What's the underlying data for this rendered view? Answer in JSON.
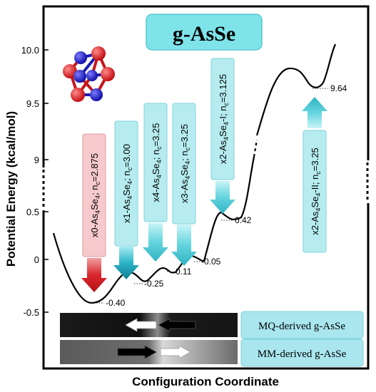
{
  "chart_data": {
    "type": "line",
    "title": "g-AsSe",
    "xlabel": "Configuration Coordinate",
    "ylabel": "Potential Energy (kcal/mol)",
    "y_tick_labels": [
      "-0.5",
      "0",
      "0.5",
      "9",
      "9.5",
      "10.0"
    ],
    "y_axis_break": "between 0.5 and 9",
    "series": [
      {
        "values": [
          0.3,
          -0.4,
          -0.25,
          -0.11,
          -0.05,
          0.42,
          9.12,
          9.84,
          9.64,
          10.04
        ]
      }
    ],
    "minima": [
      {
        "label": "-0.40",
        "value": -0.4
      },
      {
        "label": "-0.25",
        "value": -0.25
      },
      {
        "label": "-0.11",
        "value": -0.11
      },
      {
        "label": "-0.05",
        "value": -0.05
      },
      {
        "label": "0.42",
        "value": 0.42
      },
      {
        "label": "9.64",
        "value": 9.64
      }
    ],
    "configurations": [
      {
        "prefix": "x0-As",
        "as_sub": "4",
        "mid": "Se",
        "se_sub": "4",
        "suffix": "; n",
        "nsub": "c",
        "value": "=2.875",
        "color": "red"
      },
      {
        "prefix": "x1-As",
        "as_sub": "4",
        "mid": "Se",
        "se_sub": "4",
        "suffix": "; n",
        "nsub": "c",
        "value": "=3.00",
        "color": "teal"
      },
      {
        "prefix": "x4-As",
        "as_sub": "4",
        "mid": "Se",
        "se_sub": "4",
        "suffix": "; n",
        "nsub": "c",
        "value": "=3.25",
        "color": "cyan"
      },
      {
        "prefix": "x3-As",
        "as_sub": "4",
        "mid": "Se",
        "se_sub": "4",
        "suffix": "; n",
        "nsub": "c",
        "value": "=3.25",
        "color": "cyan"
      },
      {
        "prefix": "x2-As",
        "as_sub": "4",
        "mid": "Se",
        "se_sub": "4",
        "suffix": "-I; n",
        "nsub": "c",
        "value": "=3.125",
        "color": "cyan"
      },
      {
        "prefix": "x2-As",
        "as_sub": "4",
        "mid": "Se",
        "se_sub": "4",
        "suffix": "-II; n",
        "nsub": "c",
        "value": "=3.25",
        "color": "cyan"
      }
    ],
    "legend": {
      "placement": "bottom",
      "entries": [
        {
          "label": "MQ-derived g-AsSe"
        },
        {
          "label": "MM-derived g-AsSe"
        }
      ]
    },
    "colors": {
      "red": "#d9262b",
      "teal": "#1e9fb3",
      "cyan": "#5fd3dc",
      "pink_box": "#f6c9cc",
      "cyan_box": "#b6ecef",
      "title_box": "#7ee4ea",
      "legend_box": "#a9e6ee"
    },
    "grid": false
  }
}
